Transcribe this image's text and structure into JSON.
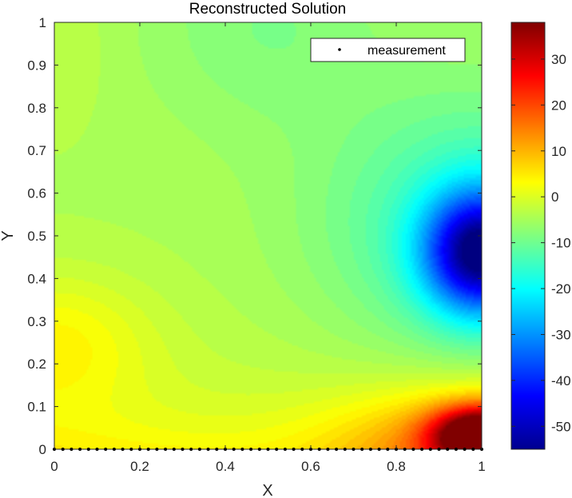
{
  "chart_data": {
    "type": "heatmap",
    "title": "Reconstructed Solution",
    "xlabel": "X",
    "ylabel": "Y",
    "xlim": [
      0,
      1
    ],
    "ylim": [
      0,
      1
    ],
    "x_ticks": [
      "0",
      "0.2",
      "0.4",
      "0.6",
      "0.8",
      "1"
    ],
    "y_ticks": [
      "0",
      "0.1",
      "0.2",
      "0.3",
      "0.4",
      "0.5",
      "0.6",
      "0.7",
      "0.8",
      "0.9",
      "1"
    ],
    "colormap": "jet",
    "grid": false,
    "colorbar": {
      "range": [
        -55,
        38
      ],
      "ticks": [
        30,
        20,
        10,
        0,
        -10,
        -20,
        -30,
        -40,
        -50
      ],
      "tick_labels": [
        "30",
        "20",
        "10",
        "0",
        "-10",
        "-20",
        "-30",
        "-40",
        "-50"
      ]
    },
    "field_features": [
      {
        "x": 1.0,
        "y": 0.05,
        "value": 38
      },
      {
        "x": 1.0,
        "y": 0.44,
        "value": -48
      },
      {
        "x": 0.0,
        "y": 0.26,
        "value": 7
      },
      {
        "x": 0.5,
        "y": 0.95,
        "value": -7
      },
      {
        "x": 0.4,
        "y": 0.5,
        "value": -3
      }
    ],
    "measurements": {
      "name": "measurement",
      "y": 0,
      "x_range": [
        0,
        1
      ],
      "count": 51
    },
    "legend": {
      "position": "top-right",
      "entries": [
        "measurement"
      ]
    }
  }
}
